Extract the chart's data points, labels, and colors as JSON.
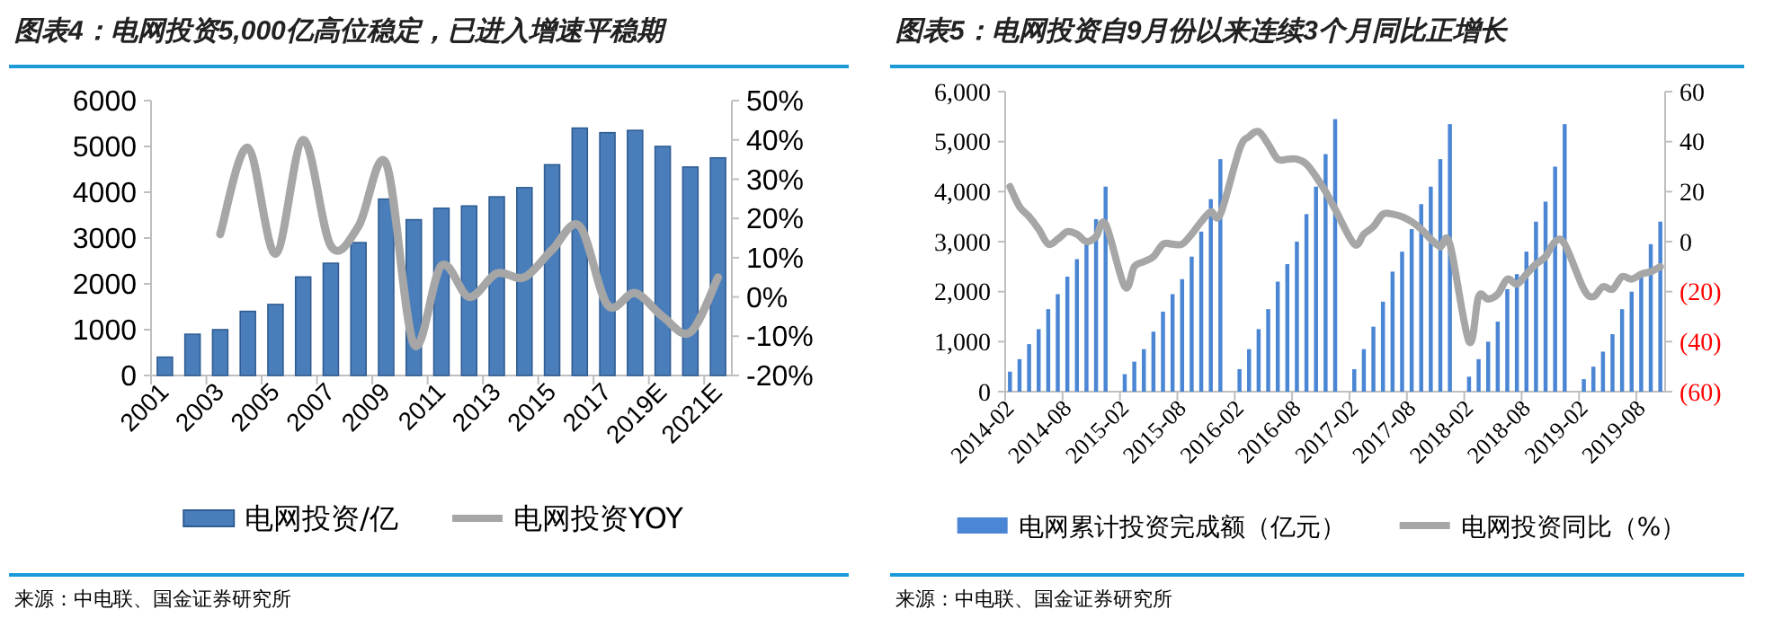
{
  "chart_data": [
    {
      "type": "bar",
      "title": "图表4：电网投资5,000亿高位稳定，已进入增速平稳期",
      "categories": [
        "2001",
        null,
        "2003",
        null,
        "2005",
        null,
        "2007",
        null,
        "2009",
        null,
        "2011",
        null,
        "2013",
        null,
        "2015",
        null,
        "2017",
        null,
        "2019E",
        null,
        "2021E"
      ],
      "series": [
        {
          "name": "电网投资/亿",
          "color": "#4a7ebb",
          "values": [
            400,
            900,
            1000,
            1400,
            1550,
            2150,
            2450,
            2900,
            3850,
            3400,
            3650,
            3700,
            3900,
            4100,
            4600,
            5400,
            5300,
            5350,
            5000,
            4550,
            4750
          ]
        },
        {
          "name": "电网投资YOY",
          "type": "line",
          "axis": "y2",
          "color": "#a6a6a6",
          "values": [
            null,
            null,
            16,
            38,
            11,
            40,
            13,
            18,
            34,
            -12,
            8,
            0,
            6,
            5,
            12,
            18,
            -2,
            1,
            -5,
            -9,
            5
          ]
        }
      ],
      "ylim": [
        0,
        6000
      ],
      "yticks": [
        0,
        1000,
        2000,
        3000,
        4000,
        5000,
        6000
      ],
      "y2lim": [
        -20,
        50
      ],
      "y2ticks": [
        {
          "value": -20,
          "label": "-20%"
        },
        {
          "value": -10,
          "label": "-10%"
        },
        {
          "value": 0,
          "label": "0%"
        },
        {
          "value": 10,
          "label": "10%"
        },
        {
          "value": 20,
          "label": "20%"
        },
        {
          "value": 30,
          "label": "30%"
        },
        {
          "value": 40,
          "label": "40%"
        },
        {
          "value": 50,
          "label": "50%"
        }
      ],
      "legend": "bottom",
      "annotations": [
        "来源：中电联、国金证券研究所"
      ]
    },
    {
      "type": "bar",
      "title": "图表5：电网投资自9月份以来连续3个月同比正增长",
      "categories": [
        "2014-02",
        null,
        null,
        null,
        null,
        null,
        "2014-08",
        null,
        null,
        null,
        null,
        null,
        "2015-02",
        null,
        null,
        null,
        null,
        null,
        "2015-08",
        null,
        null,
        null,
        null,
        null,
        "2016-02",
        null,
        null,
        null,
        null,
        null,
        "2016-08",
        null,
        null,
        null,
        null,
        null,
        "2017-02",
        null,
        null,
        null,
        null,
        null,
        "2017-08",
        null,
        null,
        null,
        null,
        null,
        "2018-02",
        null,
        null,
        null,
        null,
        null,
        "2018-08",
        null,
        null,
        null,
        null,
        null,
        "2019-02",
        null,
        null,
        null,
        null,
        null,
        "2019-08",
        null,
        null
      ],
      "series": [
        {
          "name": "电网累计投资完成额（亿元）",
          "color": "#4a86d4",
          "values": [
            400,
            650,
            950,
            1250,
            1650,
            1950,
            2300,
            2650,
            2950,
            3450,
            4100,
            null,
            350,
            600,
            850,
            1200,
            1600,
            1950,
            2250,
            2700,
            3200,
            3850,
            4650,
            null,
            450,
            850,
            1250,
            1650,
            2200,
            2550,
            3000,
            3550,
            4100,
            4750,
            5450,
            null,
            450,
            850,
            1300,
            1800,
            2400,
            2800,
            3250,
            3750,
            4100,
            4650,
            5350,
            null,
            300,
            650,
            1000,
            1400,
            2050,
            2350,
            2800,
            3400,
            3800,
            4500,
            5350,
            null,
            250,
            500,
            800,
            1150,
            1650,
            2000,
            2350,
            2950,
            3400
          ]
        },
        {
          "name": "电网投资同比（%）",
          "type": "line",
          "axis": "y2",
          "color": "#a6a6a6",
          "values": [
            22,
            14,
            10,
            5,
            -1,
            1,
            4,
            3,
            0,
            2,
            7,
            null,
            -18,
            -10,
            -8,
            -6,
            -1,
            -1,
            -1,
            3,
            8,
            12,
            11,
            null,
            37,
            42,
            44,
            39,
            33,
            33,
            33,
            31,
            26,
            20,
            13,
            null,
            -1,
            3,
            6,
            11,
            11,
            10,
            8,
            5,
            1,
            -2,
            -1,
            null,
            -40,
            -22,
            -23,
            -21,
            -15,
            -17,
            -13,
            -9,
            -6,
            0,
            -1,
            null,
            -19,
            -22,
            -18,
            -19,
            -14,
            -15,
            -13,
            -12,
            -10
          ]
        }
      ],
      "ylim": [
        0,
        6000
      ],
      "yticks": [
        0,
        {
          "value": 1000,
          "label": "1,000"
        },
        {
          "value": 2000,
          "label": "2,000"
        },
        {
          "value": 3000,
          "label": "3,000"
        },
        {
          "value": 4000,
          "label": "4,000"
        },
        {
          "value": 5000,
          "label": "5,000"
        },
        {
          "value": 6000,
          "label": "6,000"
        }
      ],
      "y2lim": [
        -60,
        60
      ],
      "y2ticks": [
        {
          "value": -60,
          "label": "(60)"
        },
        {
          "value": -40,
          "label": "(40)"
        },
        {
          "value": -20,
          "label": "(20)"
        },
        0,
        20,
        40,
        60
      ],
      "legend": "bottom",
      "annotations": [
        "来源：中电联、国金证券研究所"
      ]
    }
  ]
}
